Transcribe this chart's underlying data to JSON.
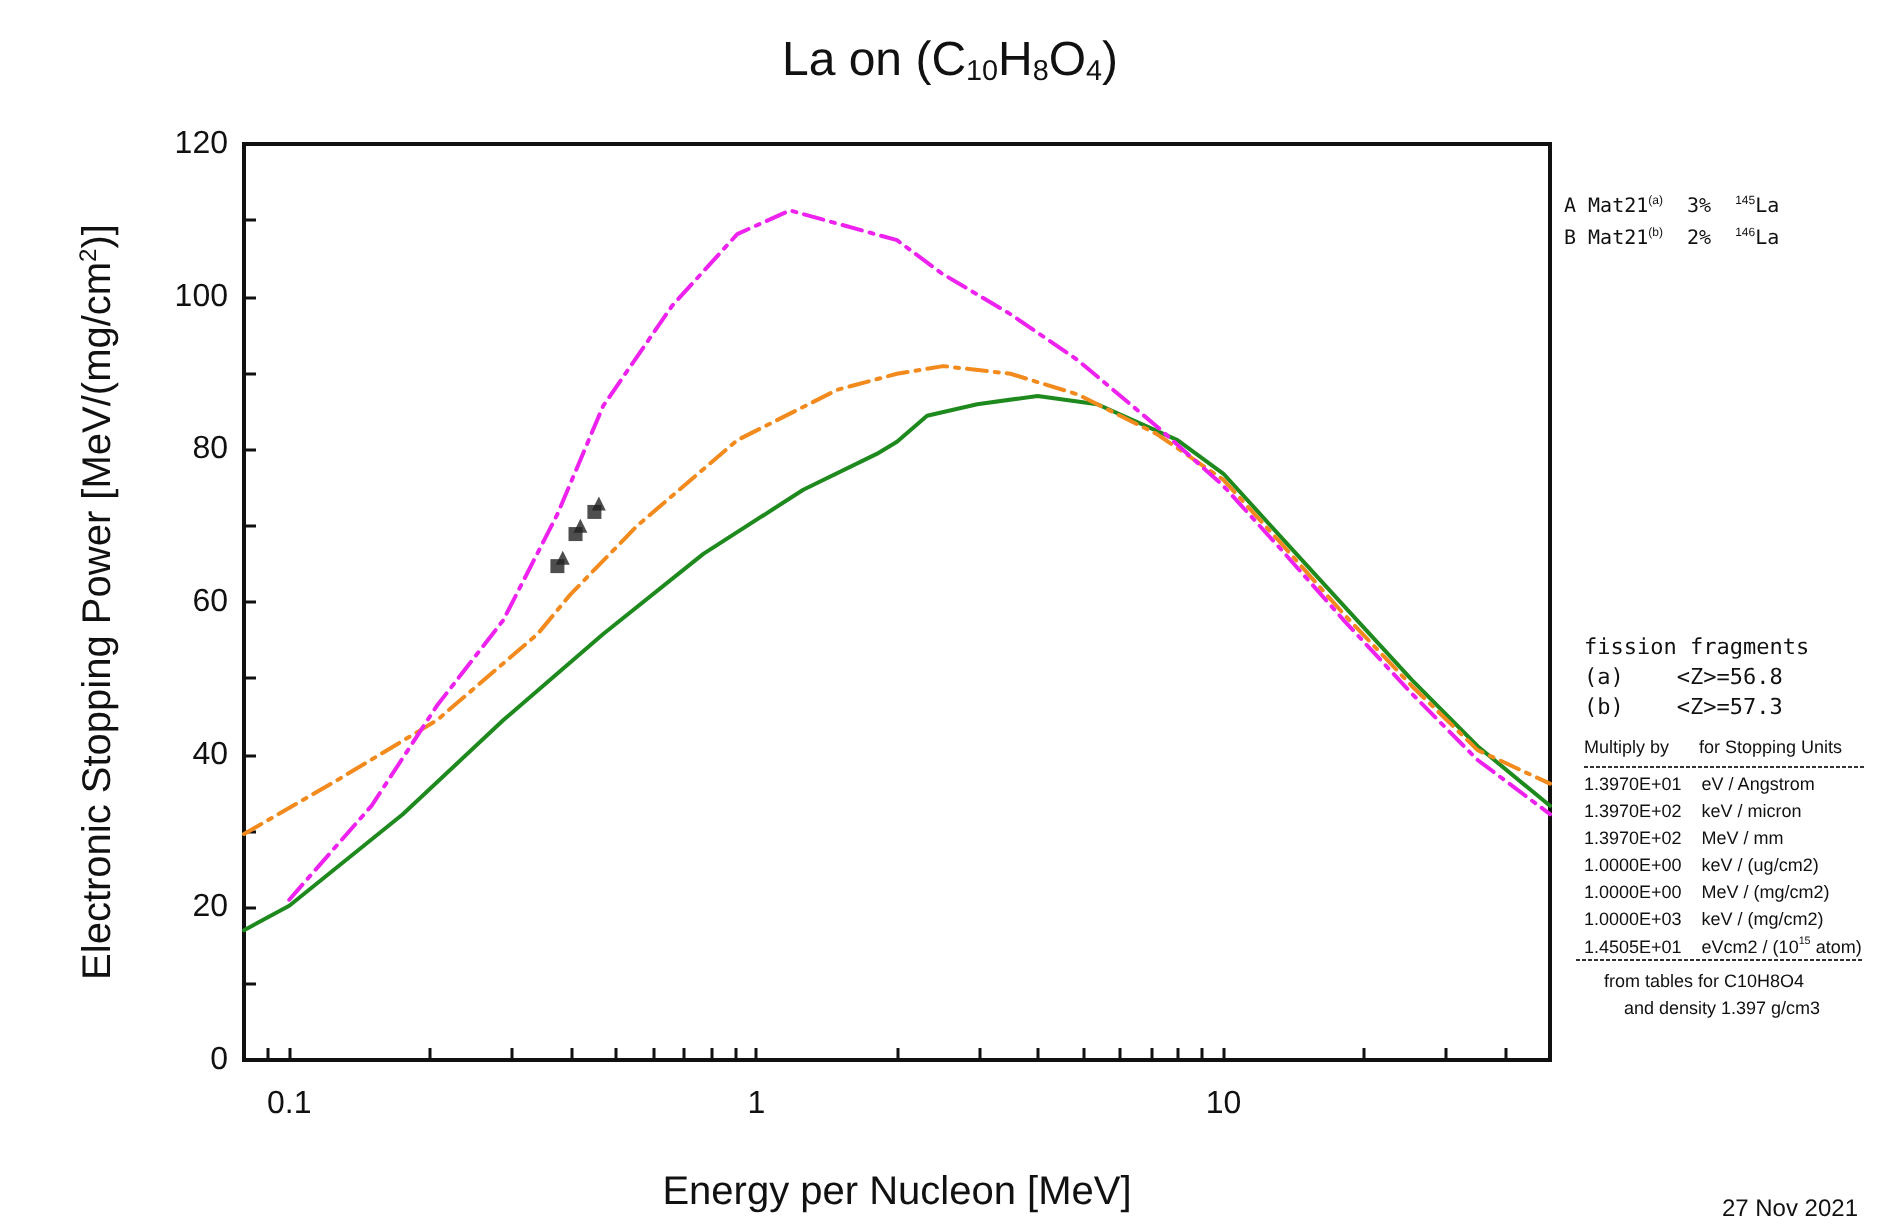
{
  "chart_data": {
    "type": "line",
    "title": "La on (C$_{10}$H$_{8}$O$_{4}$)",
    "xlabel": "Energy per Nucleon [MeV]",
    "ylabel": "Electronic Stopping Power [MeV/(mg/cm$^{2}$)]",
    "log": "x",
    "xlim": [
      0.08,
      50
    ],
    "xticks": [
      {
        "value": 0.08,
        "label": null
      },
      {
        "value": 0.09,
        "label": null
      },
      {
        "value": 0.1,
        "label": "0.1"
      },
      {
        "value": 0.2,
        "label": null
      },
      {
        "value": 0.3,
        "label": null
      },
      {
        "value": 0.4,
        "label": null
      },
      {
        "value": 0.5,
        "label": null
      },
      {
        "value": 0.6,
        "label": null
      },
      {
        "value": 0.7,
        "label": null
      },
      {
        "value": 0.8,
        "label": null
      },
      {
        "value": 0.9,
        "label": null
      },
      {
        "value": 1,
        "label": "1"
      },
      {
        "value": 2,
        "label": null
      },
      {
        "value": 3,
        "label": null
      },
      {
        "value": 4,
        "label": null
      },
      {
        "value": 5,
        "label": null
      },
      {
        "value": 6,
        "label": null
      },
      {
        "value": 7,
        "label": null
      },
      {
        "value": 8,
        "label": null
      },
      {
        "value": 9,
        "label": null
      },
      {
        "value": 10,
        "label": "10"
      },
      {
        "value": 20,
        "label": null
      },
      {
        "value": 30,
        "label": null
      },
      {
        "value": 40,
        "label": null
      }
    ],
    "ylim": [
      0,
      120
    ],
    "yticks": [
      0,
      {
        "value": 10,
        "label": null
      },
      20,
      {
        "value": 30,
        "label": null
      },
      40,
      {
        "value": 50,
        "label": null
      },
      60,
      {
        "value": 70,
        "label": null
      },
      80,
      {
        "value": 90,
        "label": null
      },
      100,
      {
        "value": 110,
        "label": null
      },
      120
    ],
    "grid": false,
    "marker": "none",
    "series": [
      {
        "color": "#1e8a1e",
        "line_style": "solid",
        "x": [
          0.08,
          0.1,
          0.175,
          0.287,
          0.47,
          0.77,
          1.26,
          1.81,
          2.0,
          2.32,
          2.97,
          4.0,
          5.37,
          7.97,
          10,
          13.1,
          18.1,
          25.3,
          35,
          50
        ],
        "values": [
          17.0,
          20.2,
          32.2,
          44.5,
          55.8,
          66.3,
          74.7,
          79.4,
          81.0,
          84.4,
          85.9,
          87.0,
          85.9,
          81.2,
          76.8,
          68.9,
          59.5,
          49.8,
          41.1,
          33.3
        ]
      },
      {
        "color": "#f28a1e",
        "line_style": "dashed",
        "x": [
          0.08,
          0.127,
          0.207,
          0.34,
          0.4,
          0.556,
          0.91,
          1.49,
          2.0,
          2.51,
          3.5,
          4.87,
          7.2,
          10,
          13.1,
          18.1,
          25.3,
          35,
          50
        ],
        "values": [
          29.6,
          36.7,
          44.5,
          55.8,
          61.0,
          70.0,
          81.2,
          87.8,
          89.9,
          90.9,
          89.9,
          87.2,
          82.0,
          76.0,
          68.1,
          58.4,
          49.0,
          40.6,
          36.2
        ]
      },
      {
        "color": "#ee22ee",
        "line_style": "dashed",
        "x": [
          0.1,
          0.15,
          0.207,
          0.287,
          0.375,
          0.47,
          0.66,
          0.91,
          1.18,
          2.0,
          2.5,
          3.5,
          4.87,
          7.2,
          10,
          13.1,
          18.1,
          25.3,
          35,
          50
        ],
        "values": [
          21.0,
          33.3,
          46.4,
          57.6,
          71.5,
          85.7,
          98.8,
          108.2,
          111.3,
          107.4,
          103.0,
          97.7,
          91.7,
          83.0,
          75.2,
          67.3,
          57.6,
          48.0,
          39.3,
          32.2
        ]
      },
      {
        "type": "scatter",
        "color": "#222222",
        "marker": "square",
        "x": [
          0.375,
          0.41,
          0.45
        ],
        "values": [
          64.7,
          68.9,
          71.8
        ]
      },
      {
        "type": "scatter",
        "color": "#222222",
        "marker": "triangle",
        "x": [
          0.385,
          0.42,
          0.46
        ],
        "values": [
          65.8,
          70.0,
          72.9
        ]
      }
    ],
    "annotations": [
      "A Mat21$^{(a)}$  3%  $^{145}$La",
      "B Mat21$^{(b)}$  2%  $^{146}$La",
      "fission fragments",
      "(a)    <Z>=56.8",
      "(b)    <Z>=57.3",
      "Multiply by      for Stopping Units",
      "1.3970E+01    eV / Angstrom",
      "1.3970E+02    keV / micron",
      "1.3970E+02    MeV / mm",
      "1.0000E+00    keV / (ug/cm2)",
      "1.0000E+00    MeV / (mg/cm2)",
      "1.0000E+03    keV / (mg/cm2)",
      "1.4505E+01    eVcm2 / (10$^{15}$ atom)",
      "from tables for C10H8O4",
      "and density 1.397 g/cm3",
      "27 Nov 2021"
    ]
  }
}
